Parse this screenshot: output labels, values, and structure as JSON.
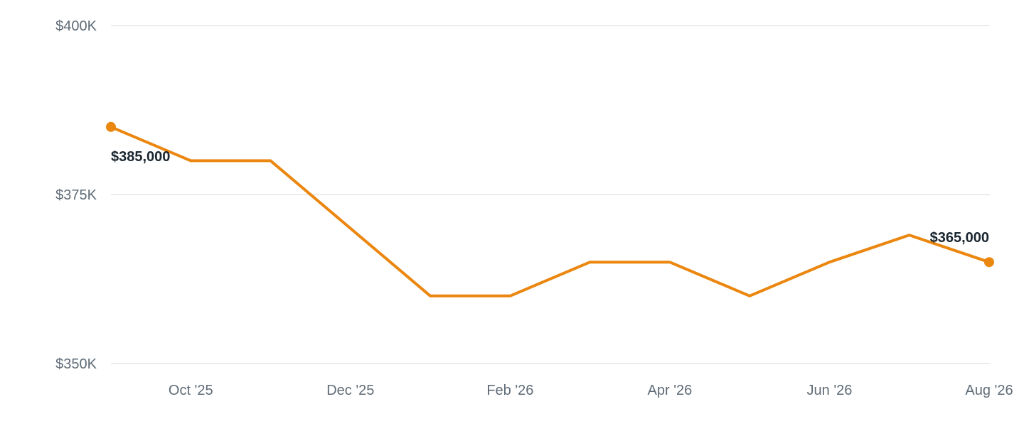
{
  "chart_data": {
    "type": "line",
    "x": [
      "2025-09",
      "2025-10",
      "2025-11",
      "2025-12",
      "2026-01",
      "2026-02",
      "2026-03",
      "2026-04",
      "2026-05",
      "2026-06",
      "2026-07",
      "2026-08"
    ],
    "series": [
      {
        "values": [
          385000,
          380000,
          380000,
          370000,
          360000,
          360000,
          365000,
          365000,
          360000,
          365000,
          369000,
          365000
        ],
        "color": "#eb860f"
      }
    ],
    "xticks": [
      {
        "x": "2025-10",
        "label": "Oct '25"
      },
      {
        "x": "2025-12",
        "label": "Dec '25"
      },
      {
        "x": "2026-02",
        "label": "Feb '26"
      },
      {
        "x": "2026-04",
        "label": "Apr '26"
      },
      {
        "x": "2026-06",
        "label": "Jun '26"
      },
      {
        "x": "2026-08",
        "label": "Aug '26"
      }
    ],
    "yticks": [
      {
        "value": 400000,
        "label": "$400K"
      },
      {
        "value": 375000,
        "label": "$375K"
      },
      {
        "value": 350000,
        "label": "$350K"
      }
    ],
    "ylim": [
      350000,
      400000
    ],
    "grid": true,
    "legend": "none",
    "endpoint_markers": true,
    "data_labels": [
      {
        "x": "2025-09",
        "text": "$385,000"
      },
      {
        "x": "2026-08",
        "text": "$365,000"
      }
    ],
    "colors": {
      "series": "#eb860f",
      "grid": "#e3e6ea",
      "tick_text": "#5f6b76",
      "label_text": "#1a2630"
    }
  }
}
